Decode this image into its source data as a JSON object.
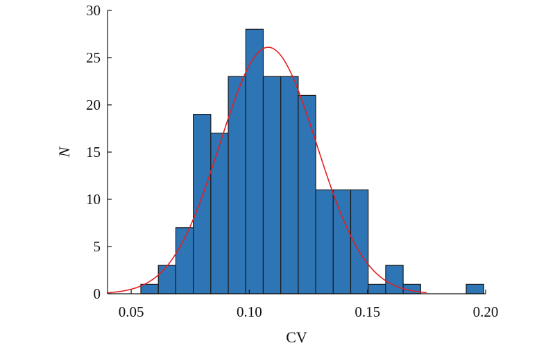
{
  "chart_data": {
    "type": "bar",
    "subtype": "histogram-with-fit-curve",
    "xlabel": "CV",
    "ylabel": "N",
    "xlim": [
      0.04,
      0.2
    ],
    "ylim": [
      0,
      30
    ],
    "xticks": [
      "0.05",
      "0.10",
      "0.15",
      "0.20"
    ],
    "yticks": [
      "0",
      "5",
      "10",
      "15",
      "20",
      "25",
      "30"
    ],
    "bin_width": 0.0074,
    "bins": [
      {
        "x0": 0.0541,
        "x1": 0.0615,
        "count": 1
      },
      {
        "x0": 0.0615,
        "x1": 0.0689,
        "count": 3
      },
      {
        "x0": 0.0689,
        "x1": 0.0763,
        "count": 7
      },
      {
        "x0": 0.0763,
        "x1": 0.0837,
        "count": 19
      },
      {
        "x0": 0.0837,
        "x1": 0.0911,
        "count": 17
      },
      {
        "x0": 0.0911,
        "x1": 0.0985,
        "count": 23
      },
      {
        "x0": 0.0985,
        "x1": 0.1059,
        "count": 28
      },
      {
        "x0": 0.1059,
        "x1": 0.1133,
        "count": 23
      },
      {
        "x0": 0.1133,
        "x1": 0.1207,
        "count": 23
      },
      {
        "x0": 0.1207,
        "x1": 0.1281,
        "count": 21
      },
      {
        "x0": 0.1281,
        "x1": 0.1355,
        "count": 11
      },
      {
        "x0": 0.1355,
        "x1": 0.1429,
        "count": 11
      },
      {
        "x0": 0.1429,
        "x1": 0.1503,
        "count": 11
      },
      {
        "x0": 0.1503,
        "x1": 0.1577,
        "count": 1
      },
      {
        "x0": 0.1577,
        "x1": 0.1651,
        "count": 3
      },
      {
        "x0": 0.1651,
        "x1": 0.1725,
        "count": 1
      },
      {
        "x0": 0.1918,
        "x1": 0.1992,
        "count": 1
      }
    ],
    "fit_curve": {
      "type": "normal",
      "mean": 0.108,
      "sd": 0.0205,
      "peak": 26.1,
      "x_range": [
        0.04,
        0.175
      ]
    },
    "grid": false,
    "legend": "none",
    "colors": {
      "bar_fill": "#2e75b6",
      "bar_edge": "#1a1a1a",
      "curve": "#e02020",
      "axis": "#111111"
    }
  }
}
